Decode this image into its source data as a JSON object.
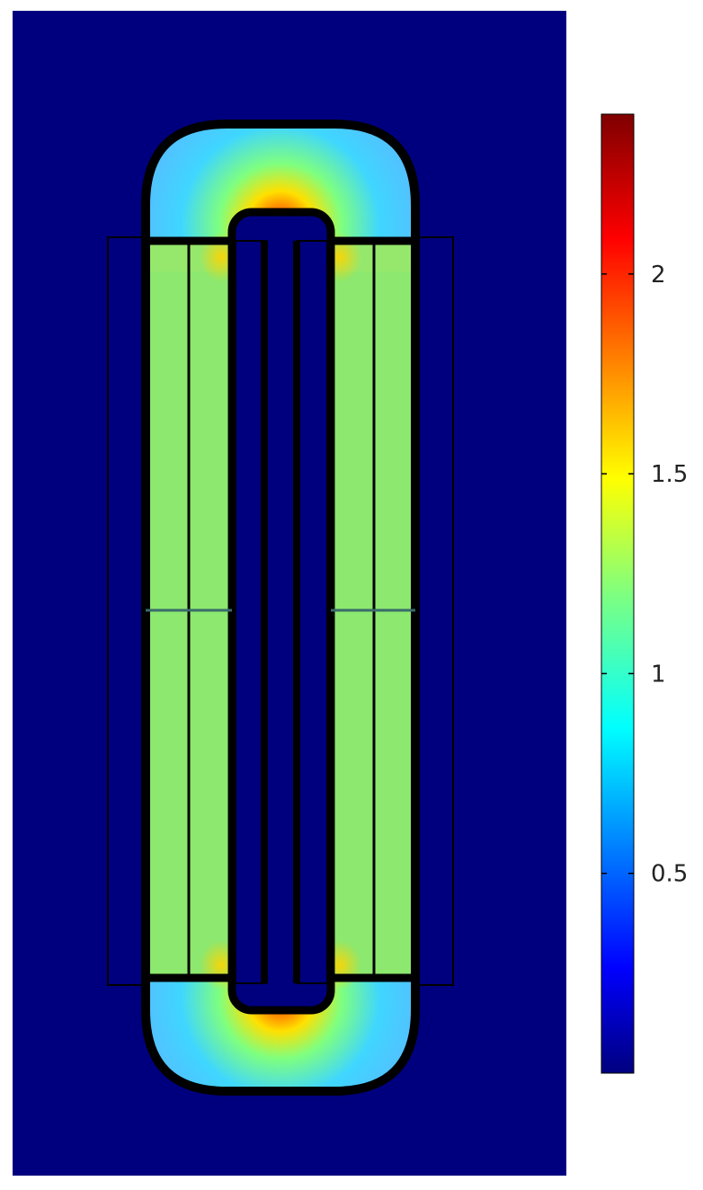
{
  "chart_data": {
    "type": "heatmap",
    "title": "",
    "xlabel": "",
    "ylabel": "",
    "colormap": "jet",
    "colorbar": {
      "range": [
        0,
        2.4
      ],
      "ticks": [
        0.5,
        1,
        1.5,
        2
      ],
      "tick_labels": [
        "0.5",
        "1",
        "1.5",
        "2"
      ]
    },
    "regions": [
      {
        "name": "air",
        "value": 0.0
      },
      {
        "name": "limb",
        "value": 1.3
      },
      {
        "name": "yoke",
        "value": 1.0
      },
      {
        "name": "inner-corner",
        "value": 2.0
      }
    ]
  },
  "colors": {
    "background": "#00007f",
    "limb": "#8ce86e",
    "outline": "#000000"
  }
}
